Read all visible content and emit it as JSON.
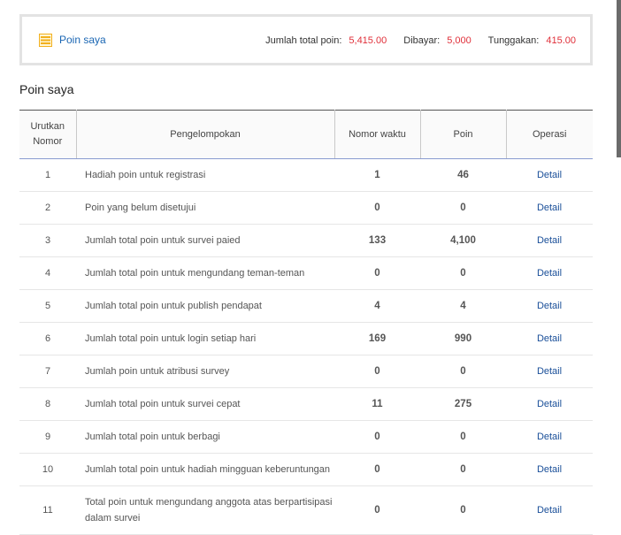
{
  "summary": {
    "title": "Poin saya",
    "total_label": "Jumlah total poin:",
    "total_value": "5,415.00",
    "paid_label": "Dibayar:",
    "paid_value": "5,000",
    "due_label": "Tunggakan:",
    "due_value": "415.00",
    "icon": "list-icon",
    "accent_color": "#f2b01e",
    "value_color": "#e0303a"
  },
  "section_title": "Poin saya",
  "table": {
    "headers": {
      "no_line1": "Urutkan",
      "no_line2": "Nomor",
      "group": "Pengelompokan",
      "time": "Nomor waktu",
      "points": "Poin",
      "operation": "Operasi"
    },
    "rows": [
      {
        "no": "1",
        "desc": "Hadiah poin untuk registrasi",
        "time": "1",
        "points": "46",
        "op": "Detail"
      },
      {
        "no": "2",
        "desc": "Poin yang belum disetujui",
        "time": "0",
        "points": "0",
        "op": "Detail"
      },
      {
        "no": "3",
        "desc": "Jumlah total poin untuk survei paied",
        "time": "133",
        "points": "4,100",
        "op": "Detail"
      },
      {
        "no": "4",
        "desc": "Jumlah total poin untuk mengundang teman-teman",
        "time": "0",
        "points": "0",
        "op": "Detail"
      },
      {
        "no": "5",
        "desc": "Jumlah total poin untuk publish pendapat",
        "time": "4",
        "points": "4",
        "op": "Detail"
      },
      {
        "no": "6",
        "desc": "Jumlah total poin untuk login setiap hari",
        "time": "169",
        "points": "990",
        "op": "Detail"
      },
      {
        "no": "7",
        "desc": "Jumlah poin untuk atribusi survey",
        "time": "0",
        "points": "0",
        "op": "Detail"
      },
      {
        "no": "8",
        "desc": "Jumlah total poin untuk survei cepat",
        "time": "11",
        "points": "275",
        "op": "Detail"
      },
      {
        "no": "9",
        "desc": "Jumlah total poin untuk berbagi",
        "time": "0",
        "points": "0",
        "op": "Detail"
      },
      {
        "no": "10",
        "desc": "Jumlah total poin untuk hadiah mingguan keberuntungan",
        "time": "0",
        "points": "0",
        "op": "Detail"
      },
      {
        "no": "11",
        "desc": "Total poin untuk mengundang anggota atas berpartisipasi dalam survei",
        "time": "0",
        "points": "0",
        "op": "Detail"
      }
    ]
  }
}
